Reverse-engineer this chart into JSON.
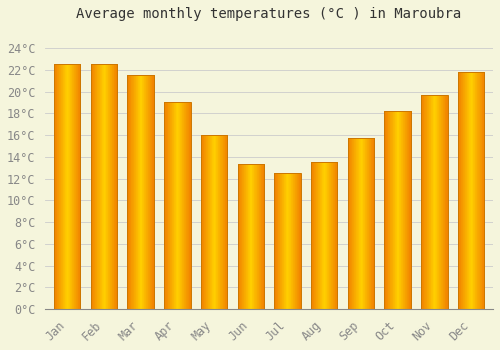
{
  "title": "Average monthly temperatures (°C ) in Maroubra",
  "months": [
    "Jan",
    "Feb",
    "Mar",
    "Apr",
    "May",
    "Jun",
    "Jul",
    "Aug",
    "Sep",
    "Oct",
    "Nov",
    "Dec"
  ],
  "values": [
    22.5,
    22.5,
    21.5,
    19.0,
    16.0,
    13.3,
    12.5,
    13.5,
    15.7,
    18.2,
    19.7,
    21.8
  ],
  "bar_color_center": "#FFD000",
  "bar_color_edge": "#F08000",
  "bar_border_color": "#CC7700",
  "background_color": "#F5F5DC",
  "grid_color": "#CCCCCC",
  "text_color": "#888888",
  "ylim": [
    0,
    26
  ],
  "ytick_step": 2,
  "title_fontsize": 10,
  "tick_fontsize": 8.5
}
